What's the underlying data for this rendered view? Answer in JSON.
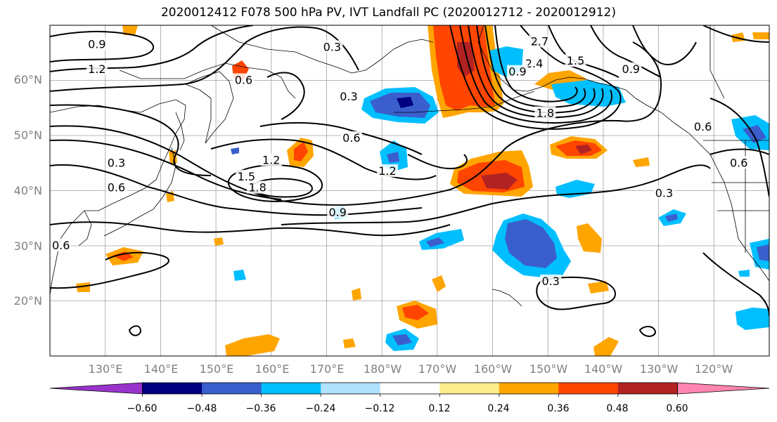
{
  "title": "2020012412 F078 500 hPa PV, IVT Landfall PC (2020012712 - 2020012912)",
  "latitude_labels": [
    "60°N",
    "50°N",
    "40°N",
    "30°N",
    "20°N"
  ],
  "longitude_labels": [
    "130°E",
    "140°E",
    "150°E",
    "160°E",
    "170°E",
    "180°W",
    "170°W",
    "160°W",
    "150°W",
    "140°W",
    "130°W",
    "120°W"
  ],
  "colorbar": {
    "tick_labels": [
      "−0.60",
      "−0.48",
      "−0.36",
      "−0.24",
      "−0.12",
      "0.12",
      "0.24",
      "0.36",
      "0.48",
      "0.60"
    ],
    "colors": [
      "#9933cc",
      "#000080",
      "#3a5fcd",
      "#00bfff",
      "#b0e2ff",
      "#ffffff",
      "#ffec8b",
      "#ffa500",
      "#ff4500",
      "#b22222",
      "#ff85b0"
    ]
  },
  "contour_labels": [
    {
      "text": "0.9",
      "lon": 128.5,
      "lat": 66.5
    },
    {
      "text": "1.2",
      "lon": 128.5,
      "lat": 62.0
    },
    {
      "text": "0.3",
      "lon": 171.0,
      "lat": 66.0
    },
    {
      "text": "0.6",
      "lon": 155.0,
      "lat": 60.0
    },
    {
      "text": "0.3",
      "lon": 174.0,
      "lat": 57.0
    },
    {
      "text": "0.6",
      "lon": 174.5,
      "lat": 49.5
    },
    {
      "text": "1.2",
      "lon": 160.0,
      "lat": 45.5
    },
    {
      "text": "1.5",
      "lon": 155.5,
      "lat": 42.5
    },
    {
      "text": "1.8",
      "lon": 157.5,
      "lat": 40.5
    },
    {
      "text": "0.9",
      "lon": 172.0,
      "lat": 36.0
    },
    {
      "text": "1.2",
      "lon": 181.0,
      "lat": 43.5
    },
    {
      "text": "0.3",
      "lon": 132.0,
      "lat": 45.0
    },
    {
      "text": "0.6",
      "lon": 132.0,
      "lat": 40.5
    },
    {
      "text": "0.3",
      "lon": 231.0,
      "lat": 39.5
    },
    {
      "text": "0.3",
      "lon": 210.5,
      "lat": 23.5
    },
    {
      "text": "2.7",
      "lon": 208.5,
      "lat": 67.0
    },
    {
      "text": "2.4",
      "lon": 207.5,
      "lat": 63.0
    },
    {
      "text": "1.5",
      "lon": 215.0,
      "lat": 63.5
    },
    {
      "text": "1.8",
      "lon": 209.5,
      "lat": 54.0
    },
    {
      "text": "0.9",
      "lon": 225.0,
      "lat": 62.0
    },
    {
      "text": "0.6",
      "lon": 238.0,
      "lat": 51.5
    },
    {
      "text": "0.6",
      "lon": 244.5,
      "lat": 45.0
    },
    {
      "text": "0.9",
      "lon": 204.5,
      "lat": 61.5
    },
    {
      "text": "0.6",
      "lon": 122.0,
      "lat": 30.0
    }
  ]
}
